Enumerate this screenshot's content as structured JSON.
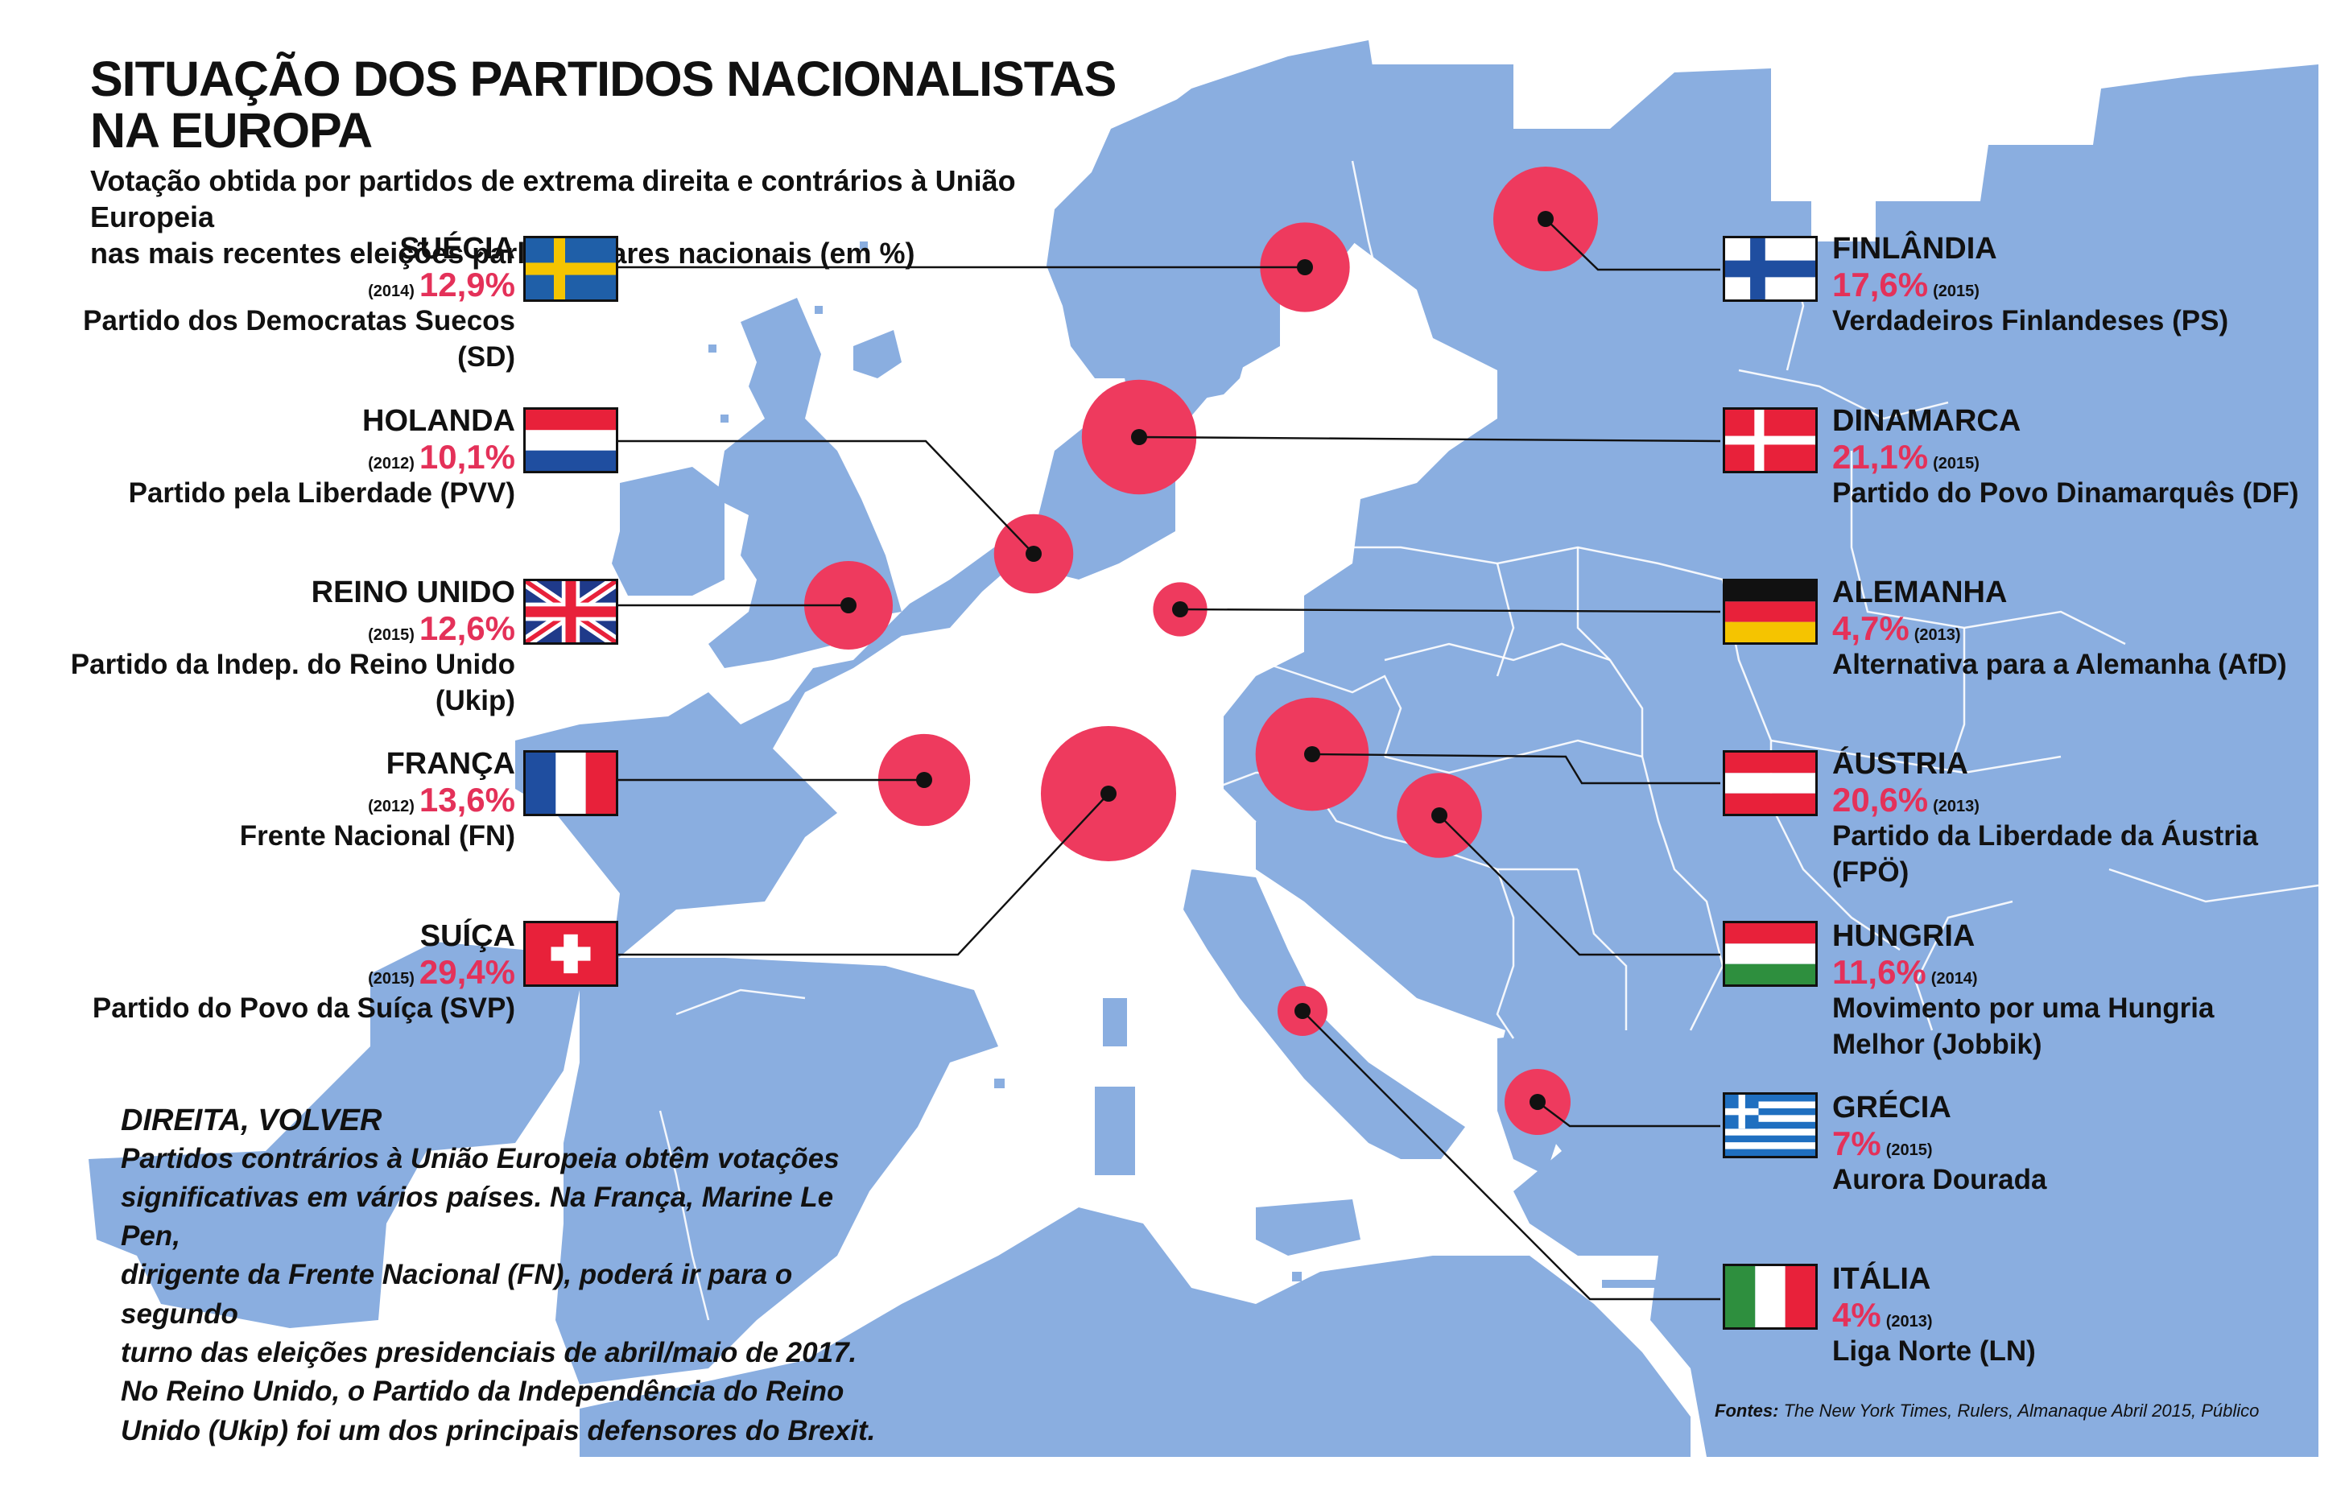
{
  "header": {
    "title": "SITUAÇÃO DOS PARTIDOS NACIONALISTAS NA EUROPA",
    "subtitle_line1": "Votação obtida por partidos de extrema direita e contrários à União Europeia",
    "subtitle_line2": "nas mais recentes eleições parlamentares nacionais (em %)"
  },
  "countries": {
    "suecia": {
      "name": "SUÉCIA",
      "year": "(2014)",
      "pct": "12,9%",
      "party": "Partido dos Democratas Suecos (SD)",
      "value": 12.9
    },
    "holanda": {
      "name": "HOLANDA",
      "year": "(2012)",
      "pct": "10,1%",
      "party": "Partido pela Liberdade (PVV)",
      "value": 10.1
    },
    "reino_unido": {
      "name": "REINO UNIDO",
      "year": "(2015)",
      "pct": "12,6%",
      "party": "Partido da Indep. do Reino Unido (Ukip)",
      "value": 12.6
    },
    "franca": {
      "name": "FRANÇA",
      "year": "(2012)",
      "pct": "13,6%",
      "party": "Frente Nacional (FN)",
      "value": 13.6
    },
    "suica": {
      "name": "SUÍÇA",
      "year": "(2015)",
      "pct": "29,4%",
      "party": "Partido do Povo da Suíça (SVP)",
      "value": 29.4
    },
    "finlandia": {
      "name": "FINLÂNDIA",
      "year": "(2015)",
      "pct": "17,6%",
      "party": "Verdadeiros Finlandeses (PS)",
      "value": 17.6
    },
    "dinamarca": {
      "name": "DINAMARCA",
      "year": "(2015)",
      "pct": "21,1%",
      "party": "Partido do Povo Dinamarquês (DF)",
      "value": 21.1
    },
    "alemanha": {
      "name": "ALEMANHA",
      "year": "(2013)",
      "pct": "4,7%",
      "party": "Alternativa para a Alemanha (AfD)",
      "value": 4.7
    },
    "austria": {
      "name": "ÁUSTRIA",
      "year": "(2013)",
      "pct": "20,6%",
      "party": "Partido da Liberdade da Áustria (FPÖ)",
      "value": 20.6
    },
    "hungria": {
      "name": "HUNGRIA",
      "year": "(2014)",
      "pct": "11,6%",
      "party": "Movimento por uma Hungria",
      "party2": "Melhor (Jobbik)",
      "value": 11.6
    },
    "grecia": {
      "name": "GRÉCIA",
      "year": "(2015)",
      "pct": "7%",
      "party": "Aurora Dourada",
      "value": 7
    },
    "italia": {
      "name": "ITÁLIA",
      "year": "(2013)",
      "pct": "4%",
      "party": "Liga Norte (LN)",
      "value": 4
    }
  },
  "note": {
    "title": "DIREITA, VOLVER",
    "line1": "Partidos contrários à União Europeia obtêm votações",
    "line2": "significativas em vários países. Na França, Marine Le Pen,",
    "line3": "dirigente da Frente Nacional (FN), poderá ir para o segundo",
    "line4": "turno das eleições presidenciais de abril/maio de 2017.",
    "line5": "No Reino Unido, o Partido da Independência do Reino",
    "line6": "Unido (Ukip) foi um dos principais defensores do Brexit."
  },
  "sources": {
    "label": "Fontes:",
    "text": "The New York Times, Rulers, Almanaque Abril 2015, Público"
  },
  "colors": {
    "land": "#8aaee0",
    "bubble": "#ee3a5e",
    "pct_text": "#e43159"
  }
}
